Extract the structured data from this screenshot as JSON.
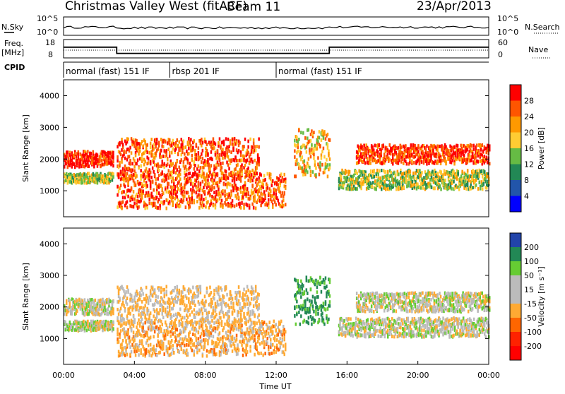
{
  "header": {
    "station": "Christmas Valley West (fitACF)",
    "beam": "Beam 11",
    "date": "23/Apr/2013"
  },
  "panels": {
    "nsky_label": "N.Sky",
    "nsky_ticks": [
      "10^5",
      "10^0"
    ],
    "nsearch_label": "N.Search",
    "nsearch_ticks": [
      "10^5",
      "10^0"
    ],
    "freq_label": "Freq.",
    "freq_unit": "[MHz]",
    "freq_ticks": [
      "18",
      "8"
    ],
    "nave_label": "Nave",
    "nave_ticks": [
      "60",
      "0"
    ],
    "cpid_label": "CPID"
  },
  "modes": [
    {
      "label": "normal (fast) 151 IF",
      "start_h": 0,
      "end_h": 6
    },
    {
      "label": "rbsp 201 IF",
      "start_h": 6,
      "end_h": 12
    },
    {
      "label": "normal (fast) 151 IF",
      "start_h": 12,
      "end_h": 24
    }
  ],
  "power_panel": {
    "ylabel": "Slant Range [km]",
    "yticks": [
      1000,
      2000,
      3000,
      4000
    ],
    "colorbar_label": "Power [dB]",
    "colorbar_ticks": [
      "28",
      "24",
      "20",
      "16",
      "12",
      "8",
      "4"
    ],
    "colors": [
      "#ff0000",
      "#ff5500",
      "#ff9900",
      "#ffcc33",
      "#66bb44",
      "#228855",
      "#2255aa",
      "#0000ff"
    ]
  },
  "velocity_panel": {
    "ylabel": "Slant Range [km]",
    "yticks": [
      1000,
      2000,
      3000,
      4000
    ],
    "colorbar_label": "Velocity [m s⁻¹]",
    "colorbar_ticks": [
      "200",
      "100",
      "50",
      "15",
      "-15",
      "-50",
      "-100",
      "-200"
    ],
    "colors": [
      "#2244aa",
      "#228855",
      "#66cc33",
      "#bbbbbb",
      "#bbbbbb",
      "#ffaa33",
      "#ff6600",
      "#ff2200",
      "#ff0000"
    ]
  },
  "xaxis": {
    "label": "Time UT",
    "ticks": [
      "00:00",
      "04:00",
      "08:00",
      "12:00",
      "16:00",
      "20:00",
      "00:00"
    ]
  },
  "chart_data": {
    "type": "heatmap",
    "x_range_hours": [
      0,
      24
    ],
    "y_range_km": [
      180,
      4500
    ],
    "freq_mhz_steps": [
      {
        "start_h": 0,
        "end_h": 3,
        "value": 14
      },
      {
        "start_h": 3,
        "end_h": 15,
        "value": 10
      },
      {
        "start_h": 15,
        "end_h": 24,
        "value": 14
      }
    ],
    "echo_bands": [
      {
        "start_h": 0,
        "end_h": 2.8,
        "range_min": 1800,
        "range_max": 2300,
        "power_db": 28,
        "velocity": 0
      },
      {
        "start_h": 0,
        "end_h": 2.8,
        "range_min": 1300,
        "range_max": 1600,
        "power_db": 14,
        "velocity": 0
      },
      {
        "start_h": 3,
        "end_h": 12.5,
        "range_min": 500,
        "range_max": 1600,
        "power_db": 24,
        "velocity": -30
      },
      {
        "start_h": 3,
        "end_h": 11,
        "range_min": 1500,
        "range_max": 2700,
        "power_db": 24,
        "velocity": -20
      },
      {
        "start_h": 13,
        "end_h": 15,
        "range_min": 1500,
        "range_max": 3000,
        "power_db": 18,
        "velocity": 60
      },
      {
        "start_h": 16.5,
        "end_h": 24,
        "range_min": 1900,
        "range_max": 2500,
        "power_db": 26,
        "velocity": 0
      },
      {
        "start_h": 15.5,
        "end_h": 24,
        "range_min": 1100,
        "range_max": 1700,
        "power_db": 14,
        "velocity": 0
      }
    ]
  }
}
